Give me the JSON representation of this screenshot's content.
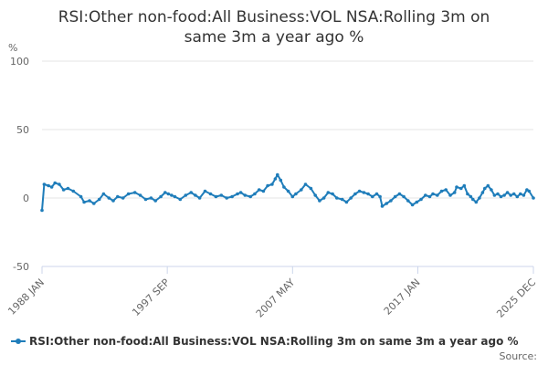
{
  "chart_data": {
    "type": "line",
    "title_line1": "RSI:Other non-food:All Business:VOL NSA:Rolling 3m on",
    "title_line2": "same 3m a year ago %",
    "ylabel": "%",
    "ylim": [
      -50,
      100
    ],
    "yticks": [
      -50,
      0,
      50,
      100
    ],
    "x_range": [
      "1988 JAN",
      "2025 DEC"
    ],
    "xticks": [
      "1988 JAN",
      "1997 SEP",
      "2007 MAY",
      "2017 JAN",
      "2025 DEC"
    ],
    "grid": true,
    "legend_position": "bottom-left",
    "series": [
      {
        "name": "RSI:Other non-food:All Business:VOL NSA:Rolling 3m on same 3m a year ago %",
        "color": "#1f7dba",
        "points": [
          [
            "1988-01",
            -9
          ],
          [
            "1988-03",
            10
          ],
          [
            "1988-07",
            9
          ],
          [
            "1988-10",
            8
          ],
          [
            "1989-01",
            11
          ],
          [
            "1989-05",
            10
          ],
          [
            "1989-09",
            6
          ],
          [
            "1990-01",
            7
          ],
          [
            "1990-06",
            5
          ],
          [
            "1991-01",
            1
          ],
          [
            "1991-04",
            -3
          ],
          [
            "1991-09",
            -2
          ],
          [
            "1992-01",
            -4
          ],
          [
            "1992-06",
            -1
          ],
          [
            "1992-10",
            3
          ],
          [
            "1993-03",
            0
          ],
          [
            "1993-07",
            -2
          ],
          [
            "1993-11",
            1
          ],
          [
            "1994-04",
            0
          ],
          [
            "1994-09",
            3
          ],
          [
            "1995-03",
            4
          ],
          [
            "1995-08",
            2
          ],
          [
            "1996-01",
            -1
          ],
          [
            "1996-06",
            0
          ],
          [
            "1996-10",
            -2
          ],
          [
            "1997-03",
            1
          ],
          [
            "1997-07",
            4
          ],
          [
            "1997-10",
            3
          ],
          [
            "1998-01",
            2
          ],
          [
            "1998-04",
            1
          ],
          [
            "1998-09",
            -1
          ],
          [
            "1999-02",
            2
          ],
          [
            "1999-07",
            4
          ],
          [
            "1999-11",
            2
          ],
          [
            "2000-03",
            0
          ],
          [
            "2000-08",
            5
          ],
          [
            "2001-01",
            3
          ],
          [
            "2001-06",
            1
          ],
          [
            "2001-11",
            2
          ],
          [
            "2002-04",
            0
          ],
          [
            "2002-09",
            1
          ],
          [
            "2003-02",
            3
          ],
          [
            "2003-05",
            4
          ],
          [
            "2003-09",
            2
          ],
          [
            "2004-02",
            1
          ],
          [
            "2004-06",
            3
          ],
          [
            "2004-10",
            6
          ],
          [
            "2005-02",
            5
          ],
          [
            "2005-06",
            9
          ],
          [
            "2005-10",
            10
          ],
          [
            "2006-01",
            14
          ],
          [
            "2006-03",
            17
          ],
          [
            "2006-06",
            13
          ],
          [
            "2006-09",
            8
          ],
          [
            "2007-01",
            5
          ],
          [
            "2007-05",
            1
          ],
          [
            "2007-08",
            3
          ],
          [
            "2008-01",
            6
          ],
          [
            "2008-05",
            10
          ],
          [
            "2008-10",
            7
          ],
          [
            "2009-02",
            2
          ],
          [
            "2009-06",
            -2
          ],
          [
            "2009-10",
            0
          ],
          [
            "2010-02",
            4
          ],
          [
            "2010-06",
            3
          ],
          [
            "2010-10",
            0
          ],
          [
            "2011-03",
            -1
          ],
          [
            "2011-07",
            -3
          ],
          [
            "2011-11",
            0
          ],
          [
            "2012-03",
            3
          ],
          [
            "2012-07",
            5
          ],
          [
            "2012-11",
            4
          ],
          [
            "2013-03",
            3
          ],
          [
            "2013-07",
            1
          ],
          [
            "2013-11",
            3
          ],
          [
            "2014-02",
            1
          ],
          [
            "2014-04",
            -6
          ],
          [
            "2014-08",
            -4
          ],
          [
            "2014-12",
            -2
          ],
          [
            "2015-04",
            1
          ],
          [
            "2015-08",
            3
          ],
          [
            "2015-12",
            1
          ],
          [
            "2016-04",
            -2
          ],
          [
            "2016-08",
            -5
          ],
          [
            "2016-12",
            -3
          ],
          [
            "2017-04",
            -1
          ],
          [
            "2017-08",
            2
          ],
          [
            "2017-12",
            1
          ],
          [
            "2018-03",
            3
          ],
          [
            "2018-07",
            2
          ],
          [
            "2018-11",
            5
          ],
          [
            "2019-03",
            6
          ],
          [
            "2019-07",
            2
          ],
          [
            "2019-11",
            4
          ],
          [
            "2020-01",
            8
          ],
          [
            "2020-05",
            7
          ],
          [
            "2020-08",
            9
          ],
          [
            "2020-11",
            3
          ],
          [
            "2021-02",
            1
          ],
          [
            "2021-04",
            -1
          ],
          [
            "2021-07",
            -3
          ],
          [
            "2021-10",
            0
          ],
          [
            "2022-01",
            4
          ],
          [
            "2022-03",
            7
          ],
          [
            "2022-06",
            9
          ],
          [
            "2022-09",
            6
          ],
          [
            "2022-12",
            2
          ],
          [
            "2023-03",
            3
          ],
          [
            "2023-06",
            1
          ],
          [
            "2023-09",
            2
          ],
          [
            "2023-12",
            4
          ],
          [
            "2024-03",
            2
          ],
          [
            "2024-06",
            3
          ],
          [
            "2024-09",
            1
          ],
          [
            "2024-12",
            3
          ],
          [
            "2025-03",
            2
          ],
          [
            "2025-06",
            6
          ],
          [
            "2025-08",
            5
          ],
          [
            "2025-12",
            0
          ]
        ]
      }
    ],
    "source_label": "Source:"
  }
}
